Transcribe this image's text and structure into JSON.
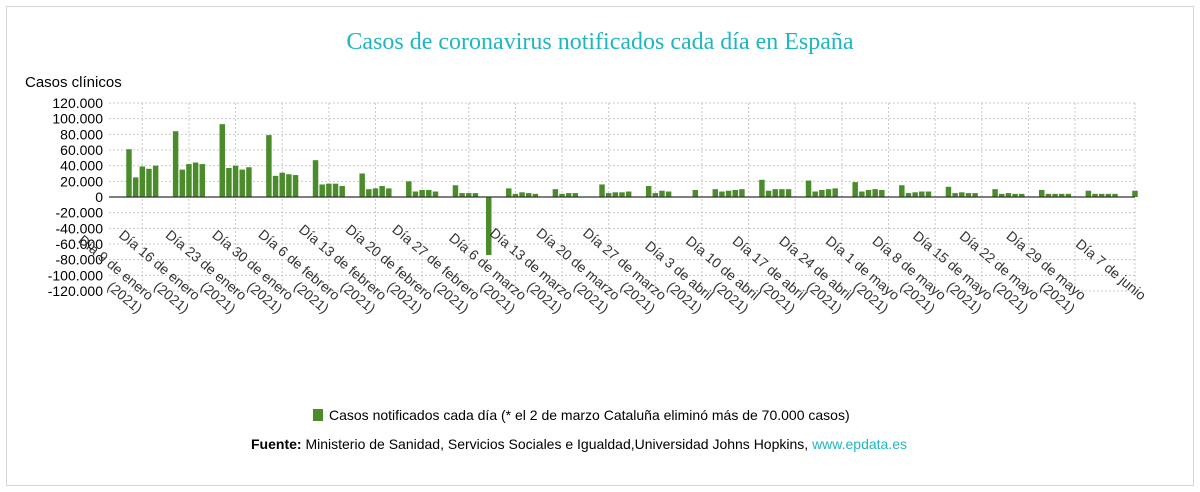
{
  "chart_data": {
    "type": "bar",
    "title": "Casos de coronavirus notificados cada día en España",
    "ylabel": "Casos clínicos",
    "ylim": [
      -120000,
      120000
    ],
    "yticks": [
      120000,
      100000,
      80000,
      60000,
      40000,
      20000,
      0,
      -20000,
      -40000,
      -60000,
      -80000,
      -100000,
      -120000
    ],
    "ytick_labels": [
      "120.000",
      "100.000",
      "80.000",
      "60.000",
      "40.000",
      "20.000",
      "0",
      "-20.000",
      "-40.000",
      "-60.000",
      "-80.000",
      "-100.000",
      "-120.000"
    ],
    "grid": true,
    "legend_position": "bottom",
    "x_start": "2021-01-04",
    "x_end": "2021-06-07",
    "xtick_labels": [
      [
        "Día 9 de enero",
        "(2021)"
      ],
      [
        "Día 16 de enero",
        "(2021)"
      ],
      [
        "Día 23 de enero",
        "(2021)"
      ],
      [
        "Día 30 de enero",
        "(2021)"
      ],
      [
        "Día 6 de febrero",
        "(2021)"
      ],
      [
        "Día 13 de febrero",
        "(2021)"
      ],
      [
        "Día 20 de febrero",
        "(2021)"
      ],
      [
        "Día 27 de febrero",
        "(2021)"
      ],
      [
        "Día 6 de marzo",
        "(2021)"
      ],
      [
        "Día 13 de marzo",
        "(2021)"
      ],
      [
        "Día 20 de marzo",
        "(2021)"
      ],
      [
        "Día 27 de marzo",
        "(2021)"
      ],
      [
        "Día 3 de abril",
        "(2021)"
      ],
      [
        "Día 10 de abril",
        "(2021)"
      ],
      [
        "Día 17 de abril",
        "(2021)"
      ],
      [
        "Día 24 de abril",
        "(2021)"
      ],
      [
        "Día 1 de mayo",
        "(2021)"
      ],
      [
        "Día 8 de mayo",
        "(2021)"
      ],
      [
        "Día 15 de mayo",
        "(2021)"
      ],
      [
        "Día 22 de mayo",
        "(2021)"
      ],
      [
        "Día 29 de mayo",
        "(2021)"
      ],
      [
        "Día 7 de junio"
      ]
    ],
    "xtick_dates": [
      "2021-01-09",
      "2021-01-16",
      "2021-01-23",
      "2021-01-30",
      "2021-02-06",
      "2021-02-13",
      "2021-02-20",
      "2021-02-27",
      "2021-03-06",
      "2021-03-13",
      "2021-03-20",
      "2021-03-27",
      "2021-04-03",
      "2021-04-10",
      "2021-04-17",
      "2021-04-24",
      "2021-05-01",
      "2021-05-08",
      "2021-05-15",
      "2021-05-22",
      "2021-05-29",
      "2021-06-07"
    ],
    "series": [
      {
        "name": "Casos notificados cada día (* el 2 de marzo Cataluña eliminó más de 70.000 casos)",
        "color": "#4a8c2a",
        "points": [
          [
            "2021-01-07",
            61000
          ],
          [
            "2021-01-08",
            25000
          ],
          [
            "2021-01-09",
            39000
          ],
          [
            "2021-01-10",
            36000
          ],
          [
            "2021-01-11",
            40000
          ],
          [
            "2021-01-14",
            84000
          ],
          [
            "2021-01-15",
            35000
          ],
          [
            "2021-01-16",
            42000
          ],
          [
            "2021-01-17",
            44000
          ],
          [
            "2021-01-18",
            42000
          ],
          [
            "2021-01-21",
            93000
          ],
          [
            "2021-01-22",
            37000
          ],
          [
            "2021-01-23",
            40000
          ],
          [
            "2021-01-24",
            35000
          ],
          [
            "2021-01-25",
            38000
          ],
          [
            "2021-01-28",
            79000
          ],
          [
            "2021-01-29",
            27000
          ],
          [
            "2021-01-30",
            31000
          ],
          [
            "2021-01-31",
            29000
          ],
          [
            "2021-02-01",
            28000
          ],
          [
            "2021-02-04",
            47000
          ],
          [
            "2021-02-05",
            16000
          ],
          [
            "2021-02-06",
            17000
          ],
          [
            "2021-02-07",
            17000
          ],
          [
            "2021-02-08",
            14000
          ],
          [
            "2021-02-11",
            30000
          ],
          [
            "2021-02-12",
            10000
          ],
          [
            "2021-02-13",
            11000
          ],
          [
            "2021-02-14",
            14000
          ],
          [
            "2021-02-15",
            11000
          ],
          [
            "2021-02-18",
            20000
          ],
          [
            "2021-02-19",
            7000
          ],
          [
            "2021-02-20",
            9000
          ],
          [
            "2021-02-21",
            9000
          ],
          [
            "2021-02-22",
            7000
          ],
          [
            "2021-02-25",
            15000
          ],
          [
            "2021-02-26",
            5000
          ],
          [
            "2021-02-27",
            5000
          ],
          [
            "2021-02-28",
            5000
          ],
          [
            "2021-03-02",
            -74000
          ],
          [
            "2021-03-05",
            11000
          ],
          [
            "2021-03-06",
            4000
          ],
          [
            "2021-03-07",
            6000
          ],
          [
            "2021-03-08",
            5000
          ],
          [
            "2021-03-09",
            4000
          ],
          [
            "2021-03-12",
            10000
          ],
          [
            "2021-03-13",
            4000
          ],
          [
            "2021-03-14",
            5000
          ],
          [
            "2021-03-15",
            5000
          ],
          [
            "2021-03-19",
            16000
          ],
          [
            "2021-03-20",
            5000
          ],
          [
            "2021-03-21",
            6000
          ],
          [
            "2021-03-22",
            6000
          ],
          [
            "2021-03-23",
            7000
          ],
          [
            "2021-03-26",
            14000
          ],
          [
            "2021-03-27",
            5000
          ],
          [
            "2021-03-28",
            8000
          ],
          [
            "2021-03-29",
            7000
          ],
          [
            "2021-04-02",
            9000
          ],
          [
            "2021-04-05",
            10000
          ],
          [
            "2021-04-06",
            7000
          ],
          [
            "2021-04-07",
            8000
          ],
          [
            "2021-04-08",
            9000
          ],
          [
            "2021-04-09",
            10000
          ],
          [
            "2021-04-12",
            22000
          ],
          [
            "2021-04-13",
            8000
          ],
          [
            "2021-04-14",
            10000
          ],
          [
            "2021-04-15",
            10000
          ],
          [
            "2021-04-16",
            10000
          ],
          [
            "2021-04-19",
            21000
          ],
          [
            "2021-04-20",
            7000
          ],
          [
            "2021-04-21",
            9000
          ],
          [
            "2021-04-22",
            10000
          ],
          [
            "2021-04-23",
            11000
          ],
          [
            "2021-04-26",
            19000
          ],
          [
            "2021-04-27",
            7000
          ],
          [
            "2021-04-28",
            9000
          ],
          [
            "2021-04-29",
            10000
          ],
          [
            "2021-04-30",
            9000
          ],
          [
            "2021-05-03",
            15000
          ],
          [
            "2021-05-04",
            5000
          ],
          [
            "2021-05-05",
            6000
          ],
          [
            "2021-05-06",
            7000
          ],
          [
            "2021-05-07",
            7000
          ],
          [
            "2021-05-10",
            13000
          ],
          [
            "2021-05-11",
            5000
          ],
          [
            "2021-05-12",
            6000
          ],
          [
            "2021-05-13",
            5000
          ],
          [
            "2021-05-14",
            5000
          ],
          [
            "2021-05-17",
            10000
          ],
          [
            "2021-05-18",
            4000
          ],
          [
            "2021-05-19",
            5000
          ],
          [
            "2021-05-20",
            4000
          ],
          [
            "2021-05-21",
            4000
          ],
          [
            "2021-05-24",
            9000
          ],
          [
            "2021-05-25",
            4000
          ],
          [
            "2021-05-26",
            4000
          ],
          [
            "2021-05-27",
            4000
          ],
          [
            "2021-05-28",
            4000
          ],
          [
            "2021-05-31",
            8000
          ],
          [
            "2021-06-01",
            4000
          ],
          [
            "2021-06-02",
            4000
          ],
          [
            "2021-06-03",
            4000
          ],
          [
            "2021-06-04",
            4000
          ],
          [
            "2021-06-07",
            8000
          ]
        ]
      }
    ]
  },
  "legend": {
    "label": "Casos notificados cada día (* el 2 de marzo Cataluña eliminó más de 70.000 casos)",
    "color": "#4a8c2a"
  },
  "source": {
    "label": "Fuente:",
    "text": " Ministerio de Sanidad, Servicios Sociales e Igualdad,Universidad Johns Hopkins, ",
    "link": "www.epdata.es"
  }
}
